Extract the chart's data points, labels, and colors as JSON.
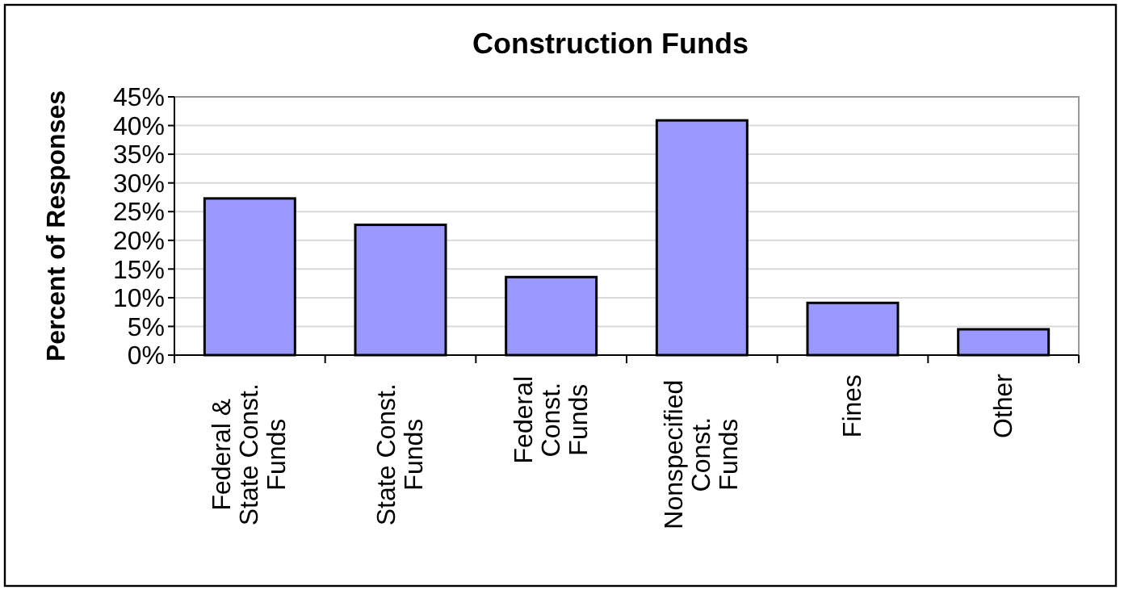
{
  "chart_data": {
    "type": "bar",
    "title": "Construction Funds",
    "ylabel": "Percent of Responses",
    "categories": [
      "Federal &\nState Const.\nFunds",
      "State Const.\nFunds",
      "Federal\nConst.\nFunds",
      "Nonspecified\nConst.\nFunds",
      "Fines",
      "Other"
    ],
    "values": [
      27.3,
      22.7,
      13.6,
      40.9,
      9.1,
      4.5
    ],
    "color": "#9999ff",
    "ylim": [
      0,
      45
    ],
    "yticks": [
      {
        "value": 0,
        "label": "0%"
      },
      {
        "value": 5,
        "label": "5%"
      },
      {
        "value": 10,
        "label": "10%"
      },
      {
        "value": 15,
        "label": "15%"
      },
      {
        "value": 20,
        "label": "20%"
      },
      {
        "value": 25,
        "label": "25%"
      },
      {
        "value": 30,
        "label": "30%"
      },
      {
        "value": 35,
        "label": "35%"
      },
      {
        "value": 40,
        "label": "40%"
      },
      {
        "value": 45,
        "label": "45%"
      }
    ],
    "grid": "y"
  }
}
